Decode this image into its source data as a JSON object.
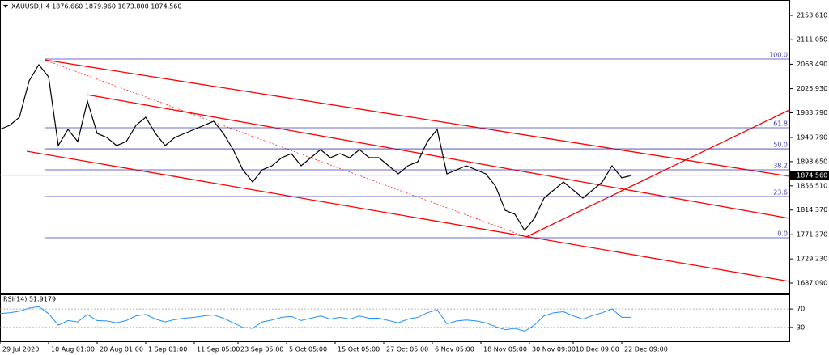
{
  "chart_data": {
    "type": "line",
    "title": "XAUUSD,H4 1876.660 1879.960 1873.800 1874.560",
    "x": [
      0,
      2,
      4,
      6,
      8,
      10,
      12,
      14,
      16,
      18,
      20,
      22,
      24,
      26,
      28,
      30,
      32,
      34,
      36,
      38,
      40,
      42,
      44,
      46,
      48,
      50,
      52,
      54,
      56,
      58,
      60,
      62,
      64,
      66,
      68,
      70,
      72,
      74,
      76,
      78,
      80,
      82,
      84,
      86,
      88,
      90,
      92,
      94,
      96,
      98,
      100,
      102,
      104,
      106,
      108,
      110,
      112,
      114,
      116,
      118,
      120,
      122,
      124,
      126,
      128,
      130
    ],
    "series": [
      {
        "color": "#000000",
        "values": [
          1954.9,
          1961.9,
          1976.0,
          2039.4,
          2067.6,
          2046.5,
          1926.7,
          1954.9,
          1933.7,
          2004.2,
          1947.8,
          1940.8,
          1926.7,
          1933.7,
          1961.9,
          1976.0,
          1947.8,
          1926.7,
          1940.8,
          1947.8,
          1954.9,
          1961.9,
          1969.0,
          1947.8,
          1919.6,
          1884.4,
          1863.3,
          1884.4,
          1891.5,
          1905.5,
          1912.6,
          1891.5,
          1905.5,
          1919.6,
          1905.5,
          1912.6,
          1905.5,
          1919.6,
          1905.5,
          1905.5,
          1891.5,
          1877.4,
          1891.5,
          1898.5,
          1933.7,
          1954.9,
          1877.4,
          1884.4,
          1891.5,
          1884.4,
          1877.4,
          1856.2,
          1813.9,
          1806.9,
          1778.7,
          1799.8,
          1835.1,
          1849.2,
          1863.3,
          1849.2,
          1835.1,
          1849.2,
          1863.3,
          1891.5,
          1870.3,
          1874.56
        ]
      }
    ],
    "xlim": [
      0,
      162.5
    ],
    "xticks": [
      {
        "value": 0,
        "label": "29 Jul 2020"
      },
      {
        "value": 10,
        "label": "10 Aug 01:00"
      },
      {
        "value": 20,
        "label": "20 Aug 01:00"
      },
      {
        "value": 30,
        "label": "1 Sep 01:00"
      },
      {
        "value": 40,
        "label": "11 Sep 05:00"
      },
      {
        "value": 49,
        "label": "23 Sep 05:00"
      },
      {
        "value": 59,
        "label": "5 Oct 05:00"
      },
      {
        "value": 69,
        "label": "15 Oct 05:00"
      },
      {
        "value": 79,
        "label": "27 Oct 05:00"
      },
      {
        "value": 89,
        "label": "6 Nov 05:00"
      },
      {
        "value": 99,
        "label": "18 Nov 05:00"
      },
      {
        "value": 109,
        "label": "30 Nov 09:00"
      },
      {
        "value": 118,
        "label": "10 Dec 09:00"
      },
      {
        "value": 128,
        "label": "22 Dec 09:00"
      }
    ],
    "ylim": [
      1670.2,
      2180.4
    ],
    "yticks": [
      {
        "value": 2153.61,
        "label": "2153.610"
      },
      {
        "value": 2111.05,
        "label": "2111.050"
      },
      {
        "value": 2068.49,
        "label": "2068.490"
      },
      {
        "value": 2025.93,
        "label": "2025.930"
      },
      {
        "value": 1983.79,
        "label": "1983.790"
      },
      {
        "value": 1940.79,
        "label": "1940.790"
      },
      {
        "value": 1898.65,
        "label": "1898.650"
      },
      {
        "value": 1856.51,
        "label": "1856.510"
      },
      {
        "value": 1814.37,
        "label": "1814.370"
      },
      {
        "value": 1771.37,
        "label": "1771.370"
      },
      {
        "value": 1729.23,
        "label": "1729.230"
      },
      {
        "value": 1687.09,
        "label": "1687.090"
      }
    ],
    "last_price": {
      "value": 1874.56,
      "label": "1874.560"
    },
    "fib_color": "#3b3bb0",
    "fib_levels": [
      {
        "value": 2077.5,
        "label": "100.0"
      },
      {
        "value": 1957.7,
        "label": "61.8"
      },
      {
        "value": 1921.0,
        "label": "50.0"
      },
      {
        "value": 1884.4,
        "label": "38.2"
      },
      {
        "value": 1837.9,
        "label": "23.6"
      },
      {
        "value": 1766.0,
        "label": "0.0"
      }
    ],
    "rsi": {
      "title": "RSI(14) 51.9179",
      "color": "#1e90ff",
      "values": [
        60,
        62,
        65,
        72,
        75,
        60,
        35,
        45,
        42,
        58,
        45,
        44,
        40,
        45,
        55,
        58,
        48,
        42,
        47,
        50,
        52,
        55,
        57,
        50,
        40,
        30,
        28,
        42,
        46,
        52,
        54,
        45,
        50,
        55,
        48,
        52,
        48,
        55,
        50,
        50,
        45,
        40,
        48,
        52,
        62,
        68,
        38,
        44,
        46,
        44,
        40,
        32,
        25,
        28,
        22,
        35,
        55,
        62,
        64,
        55,
        48,
        56,
        62,
        70,
        52,
        51.9179
      ],
      "ylim": [
        0,
        100
      ],
      "yticks": [
        70,
        30
      ]
    }
  }
}
